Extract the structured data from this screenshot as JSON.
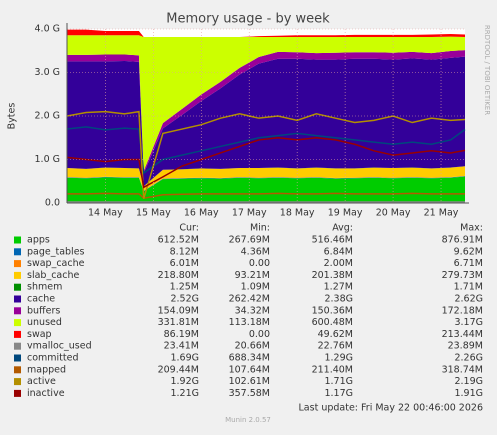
{
  "chart_data": {
    "type": "area",
    "title": "Memory usage - by week",
    "y_label": "Bytes",
    "side_text": "RRDTOOL / TOBI OETIKER",
    "x": [
      13.2,
      13.6,
      14.0,
      14.4,
      14.7,
      14.8,
      15.2,
      15.6,
      16.0,
      16.4,
      16.8,
      17.2,
      17.6,
      18.0,
      18.4,
      18.8,
      19.2,
      19.6,
      20.0,
      20.4,
      20.8,
      21.2,
      21.5
    ],
    "xlim": [
      13.2,
      21.5
    ],
    "xticks": [
      {
        "value": 14,
        "label": "14 May"
      },
      {
        "value": 15,
        "label": "15 May"
      },
      {
        "value": 16,
        "label": "16 May"
      },
      {
        "value": 17,
        "label": "17 May"
      },
      {
        "value": 18,
        "label": "18 May"
      },
      {
        "value": 19,
        "label": "19 May"
      },
      {
        "value": 20,
        "label": "20 May"
      },
      {
        "value": 21,
        "label": "21 May"
      }
    ],
    "ylim": [
      0,
      4.0
    ],
    "yticks": [
      {
        "value": 0,
        "label": "0.0"
      },
      {
        "value": 1,
        "label": "1.0 G"
      },
      {
        "value": 2,
        "label": "2.0 G"
      },
      {
        "value": 3,
        "label": "3.0 G"
      },
      {
        "value": 4,
        "label": "4.0 G"
      }
    ],
    "grid": true,
    "legend_columns": [
      "Cur:",
      "Min:",
      "Avg:",
      "Max:"
    ],
    "series": [
      {
        "name": "apps",
        "color": "#00cc00",
        "style": "area",
        "cur": "612.52M",
        "min": "267.69M",
        "avg": "516.46M",
        "max": "876.91M",
        "values": [
          0.58,
          0.57,
          0.59,
          0.58,
          0.58,
          0.27,
          0.55,
          0.56,
          0.57,
          0.56,
          0.58,
          0.57,
          0.58,
          0.57,
          0.58,
          0.56,
          0.57,
          0.58,
          0.57,
          0.58,
          0.57,
          0.58,
          0.61
        ]
      },
      {
        "name": "page_tables",
        "color": "#0066b3",
        "style": "area",
        "cur": "8.12M",
        "min": "4.36M",
        "avg": "6.84M",
        "max": "9.62M",
        "values": [
          0.008,
          0.008,
          0.008,
          0.008,
          0.008,
          0.008,
          0.008,
          0.008,
          0.008,
          0.008,
          0.008,
          0.008,
          0.008,
          0.008,
          0.008,
          0.008,
          0.008,
          0.008,
          0.008,
          0.008,
          0.008,
          0.008,
          0.008
        ]
      },
      {
        "name": "swap_cache",
        "color": "#ff8000",
        "style": "area",
        "cur": "6.01M",
        "min": "0.00",
        "avg": "2.00M",
        "max": "6.71M",
        "values": [
          0.006,
          0.006,
          0.006,
          0.006,
          0.006,
          0.006,
          0.006,
          0.006,
          0.006,
          0.006,
          0.006,
          0.006,
          0.006,
          0.006,
          0.006,
          0.006,
          0.006,
          0.006,
          0.006,
          0.006,
          0.006,
          0.006,
          0.006
        ]
      },
      {
        "name": "slab_cache",
        "color": "#ffcc00",
        "style": "area",
        "cur": "218.80M",
        "min": "93.21M",
        "avg": "201.38M",
        "max": "279.73M",
        "values": [
          0.21,
          0.2,
          0.21,
          0.21,
          0.2,
          0.1,
          0.2,
          0.2,
          0.21,
          0.21,
          0.21,
          0.22,
          0.22,
          0.21,
          0.22,
          0.22,
          0.21,
          0.22,
          0.22,
          0.22,
          0.21,
          0.22,
          0.22
        ]
      },
      {
        "name": "shmem",
        "color": "#008f00",
        "style": "area",
        "cur": "1.25M",
        "min": "1.09M",
        "avg": "1.27M",
        "max": "1.71M",
        "values": [
          0.001,
          0.001,
          0.001,
          0.001,
          0.001,
          0.001,
          0.001,
          0.001,
          0.001,
          0.001,
          0.001,
          0.001,
          0.001,
          0.001,
          0.001,
          0.001,
          0.001,
          0.001,
          0.001,
          0.001,
          0.001,
          0.001,
          0.001
        ]
      },
      {
        "name": "cache",
        "color": "#330099",
        "style": "area",
        "cur": "2.52G",
        "min": "262.42M",
        "avg": "2.38G",
        "max": "2.62G",
        "values": [
          2.45,
          2.47,
          2.44,
          2.46,
          2.45,
          0.3,
          0.95,
          1.25,
          1.55,
          1.85,
          2.15,
          2.4,
          2.5,
          2.52,
          2.48,
          2.5,
          2.52,
          2.5,
          2.49,
          2.51,
          2.5,
          2.52,
          2.52
        ]
      },
      {
        "name": "buffers",
        "color": "#990099",
        "style": "area",
        "cur": "154.09M",
        "min": "34.32M",
        "avg": "150.36M",
        "max": "172.18M",
        "values": [
          0.15,
          0.15,
          0.16,
          0.15,
          0.15,
          0.05,
          0.12,
          0.14,
          0.15,
          0.15,
          0.15,
          0.15,
          0.16,
          0.15,
          0.15,
          0.16,
          0.15,
          0.15,
          0.16,
          0.15,
          0.15,
          0.16,
          0.15
        ]
      },
      {
        "name": "unused",
        "color": "#ccff00",
        "style": "area",
        "cur": "331.81M",
        "min": "113.18M",
        "avg": "600.48M",
        "max": "3.17G",
        "values": [
          0.45,
          0.45,
          0.44,
          0.44,
          0.46,
          3.08,
          1.98,
          1.65,
          1.32,
          1.03,
          0.71,
          0.46,
          0.34,
          0.35,
          0.37,
          0.36,
          0.35,
          0.35,
          0.36,
          0.34,
          0.37,
          0.33,
          0.3
        ]
      },
      {
        "name": "swap",
        "color": "#ff0000",
        "style": "area",
        "cur": "86.19M",
        "min": "0.00",
        "avg": "49.62M",
        "max": "213.44M",
        "values": [
          0.13,
          0.13,
          0.1,
          0.1,
          0.1,
          0,
          0,
          0,
          0,
          0,
          0,
          0.02,
          0.03,
          0.04,
          0.04,
          0.04,
          0.05,
          0.05,
          0.05,
          0.05,
          0.06,
          0.06,
          0.06
        ]
      },
      {
        "name": "vmalloc_used",
        "color": "#888888",
        "style": "line",
        "cur": "23.41M",
        "min": "20.66M",
        "avg": "22.76M",
        "max": "23.89M",
        "values": [
          0.023,
          0.023,
          0.023,
          0.023,
          0.023,
          0.023,
          0.023,
          0.023,
          0.023,
          0.023,
          0.023,
          0.023,
          0.023,
          0.023,
          0.023,
          0.023,
          0.023,
          0.023,
          0.023,
          0.023,
          0.023,
          0.023,
          0.023
        ]
      },
      {
        "name": "committed",
        "color": "#00487d",
        "style": "line",
        "cur": "1.69G",
        "min": "688.34M",
        "avg": "1.29G",
        "max": "2.26G",
        "values": [
          1.7,
          1.75,
          1.68,
          1.72,
          1.7,
          0.69,
          1.0,
          1.1,
          1.2,
          1.3,
          1.4,
          1.5,
          1.55,
          1.6,
          1.55,
          1.5,
          1.45,
          1.4,
          1.35,
          1.4,
          1.35,
          1.45,
          1.69
        ]
      },
      {
        "name": "mapped",
        "color": "#b35a00",
        "style": "line",
        "cur": "209.44M",
        "min": "107.64M",
        "avg": "211.40M",
        "max": "318.74M",
        "values": [
          0.21,
          0.21,
          0.22,
          0.21,
          0.21,
          0.11,
          0.19,
          0.2,
          0.21,
          0.21,
          0.21,
          0.21,
          0.22,
          0.21,
          0.21,
          0.22,
          0.21,
          0.21,
          0.21,
          0.22,
          0.21,
          0.21,
          0.21
        ]
      },
      {
        "name": "active",
        "color": "#b38f00",
        "style": "line",
        "cur": "1.92G",
        "min": "102.61M",
        "avg": "1.71G",
        "max": "2.19G",
        "values": [
          2.0,
          2.08,
          2.1,
          2.05,
          2.1,
          0.1,
          1.6,
          1.7,
          1.8,
          1.95,
          2.05,
          1.95,
          2.0,
          1.9,
          2.05,
          1.95,
          1.85,
          1.9,
          2.0,
          1.85,
          1.95,
          1.9,
          1.92
        ]
      },
      {
        "name": "inactive",
        "color": "#990000",
        "style": "line",
        "cur": "1.21G",
        "min": "357.58M",
        "avg": "1.17G",
        "max": "1.91G",
        "values": [
          1.05,
          1.0,
          0.95,
          1.0,
          1.0,
          0.36,
          0.6,
          0.85,
          1.0,
          1.15,
          1.3,
          1.45,
          1.5,
          1.45,
          1.5,
          1.45,
          1.35,
          1.2,
          1.1,
          1.15,
          1.2,
          1.15,
          1.21
        ]
      }
    ],
    "last_update": "Last update: Fri May 22 00:46:00 2026",
    "version": "Munin 2.0.57"
  }
}
